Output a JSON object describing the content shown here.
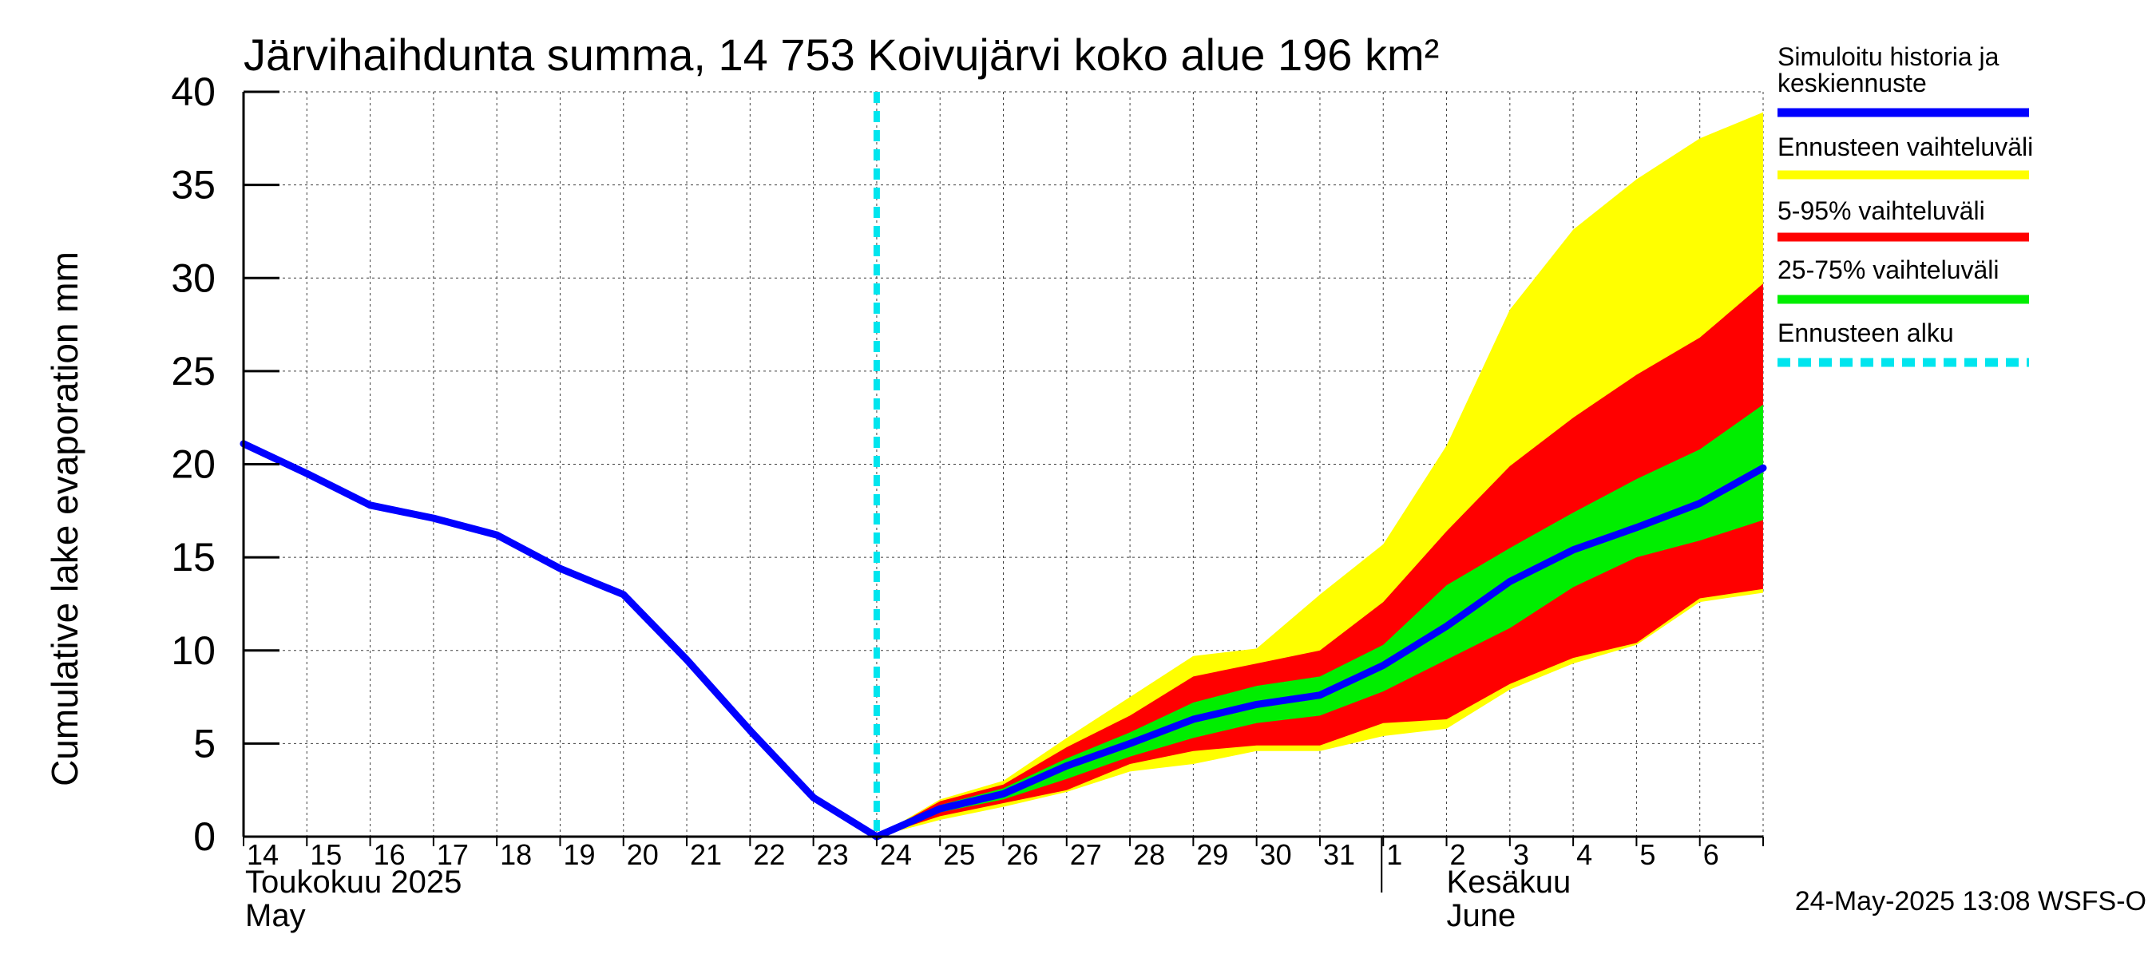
{
  "chart_data": {
    "type": "area",
    "title": "Järvihaihdunta summa, 14 753 Koivujärvi koko alue 196 km²",
    "ylabel": "Cumulative lake evaporation   mm",
    "ylim": [
      0,
      40
    ],
    "yticks": [
      "0",
      "5",
      "10",
      "15",
      "20",
      "25",
      "30",
      "35",
      "40"
    ],
    "x_day_labels": [
      "14",
      "15",
      "16",
      "17",
      "18",
      "19",
      "20",
      "21",
      "22",
      "23",
      "24",
      "25",
      "26",
      "27",
      "28",
      "29",
      "30",
      "31",
      "1",
      "2",
      "3",
      "4",
      "5",
      "6"
    ],
    "x_dates": [
      "2025-05-14",
      "2025-05-15",
      "2025-05-16",
      "2025-05-17",
      "2025-05-18",
      "2025-05-19",
      "2025-05-20",
      "2025-05-21",
      "2025-05-22",
      "2025-05-23",
      "2025-05-24",
      "2025-05-25",
      "2025-05-26",
      "2025-05-27",
      "2025-05-28",
      "2025-05-29",
      "2025-05-30",
      "2025-05-31",
      "2025-06-01",
      "2025-06-02",
      "2025-06-03",
      "2025-06-04",
      "2025-06-05",
      "2025-06-06",
      "2025-06-07"
    ],
    "xlim": [
      "2025-05-14",
      "2025-06-07"
    ],
    "month_labels": [
      {
        "line1": "Toukokuu  2025",
        "line2": "May",
        "date": "2025-05-14"
      },
      {
        "line1": "Kesäkuu",
        "line2": "June",
        "date": "2025-06-02"
      }
    ],
    "forecast_start": "2025-05-24",
    "grid": true,
    "legend_position": "right",
    "series": [
      {
        "name": "Simuloitu historia ja keskiennuste",
        "color": "#0000ff",
        "kind": "line",
        "x": [
          "2025-05-14",
          "2025-05-15",
          "2025-05-16",
          "2025-05-17",
          "2025-05-18",
          "2025-05-19",
          "2025-05-20",
          "2025-05-21",
          "2025-05-22",
          "2025-05-23",
          "2025-05-24",
          "2025-05-25",
          "2025-05-26",
          "2025-05-27",
          "2025-05-28",
          "2025-05-29",
          "2025-05-30",
          "2025-05-31",
          "2025-06-01",
          "2025-06-02",
          "2025-06-03",
          "2025-06-04",
          "2025-06-05",
          "2025-06-06",
          "2025-06-07"
        ],
        "values": [
          21.1,
          19.5,
          17.8,
          17.1,
          16.2,
          14.4,
          13.0,
          9.5,
          5.7,
          2.1,
          0.0,
          1.5,
          2.3,
          3.8,
          5.0,
          6.3,
          7.1,
          7.6,
          9.2,
          11.3,
          13.7,
          15.4,
          16.6,
          17.9,
          19.8
        ]
      },
      {
        "name": "Ennusteen vaihteluväli",
        "color": "#ffff00",
        "kind": "band",
        "x": [
          "2025-05-24",
          "2025-05-25",
          "2025-05-26",
          "2025-05-27",
          "2025-05-28",
          "2025-05-29",
          "2025-05-30",
          "2025-05-31",
          "2025-06-01",
          "2025-06-02",
          "2025-06-03",
          "2025-06-04",
          "2025-06-05",
          "2025-06-06",
          "2025-06-07"
        ],
        "lower": [
          0.0,
          0.9,
          1.6,
          2.4,
          3.5,
          3.9,
          4.6,
          4.6,
          5.4,
          5.8,
          7.9,
          9.3,
          10.3,
          12.6,
          13.1
        ],
        "upper": [
          0.0,
          2.0,
          3.0,
          5.3,
          7.5,
          9.7,
          10.1,
          13.0,
          15.7,
          21.0,
          28.3,
          32.6,
          35.3,
          37.5,
          38.9
        ]
      },
      {
        "name": "5-95% vaihteluväli",
        "color": "#ff0000",
        "kind": "band",
        "x": [
          "2025-05-24",
          "2025-05-25",
          "2025-05-26",
          "2025-05-27",
          "2025-05-28",
          "2025-05-29",
          "2025-05-30",
          "2025-05-31",
          "2025-06-01",
          "2025-06-02",
          "2025-06-03",
          "2025-06-04",
          "2025-06-05",
          "2025-06-06",
          "2025-06-07"
        ],
        "lower": [
          0.0,
          1.1,
          1.8,
          2.5,
          3.9,
          4.6,
          4.9,
          4.9,
          6.1,
          6.3,
          8.2,
          9.6,
          10.4,
          12.8,
          13.3
        ],
        "upper": [
          0.0,
          1.9,
          2.8,
          4.8,
          6.5,
          8.6,
          9.3,
          10.0,
          12.6,
          16.4,
          19.9,
          22.5,
          24.8,
          26.8,
          29.7
        ]
      },
      {
        "name": "25-75% vaihteluväli",
        "color": "#00ee00",
        "kind": "band",
        "x": [
          "2025-05-24",
          "2025-05-25",
          "2025-05-26",
          "2025-05-27",
          "2025-05-28",
          "2025-05-29",
          "2025-05-30",
          "2025-05-31",
          "2025-06-01",
          "2025-06-02",
          "2025-06-03",
          "2025-06-04",
          "2025-06-05",
          "2025-06-06",
          "2025-06-07"
        ],
        "lower": [
          0.0,
          1.3,
          2.0,
          3.1,
          4.3,
          5.3,
          6.1,
          6.5,
          7.8,
          9.5,
          11.2,
          13.4,
          15.0,
          15.9,
          17.0
        ],
        "upper": [
          0.0,
          1.7,
          2.6,
          4.2,
          5.6,
          7.2,
          8.1,
          8.6,
          10.3,
          13.5,
          15.5,
          17.4,
          19.2,
          20.8,
          23.2
        ]
      },
      {
        "name": "Ennusteen alku",
        "color": "#00e5ee",
        "kind": "vline"
      }
    ]
  },
  "footer": {
    "timestamp": "24-May-2025 13:08 WSFS-O"
  }
}
